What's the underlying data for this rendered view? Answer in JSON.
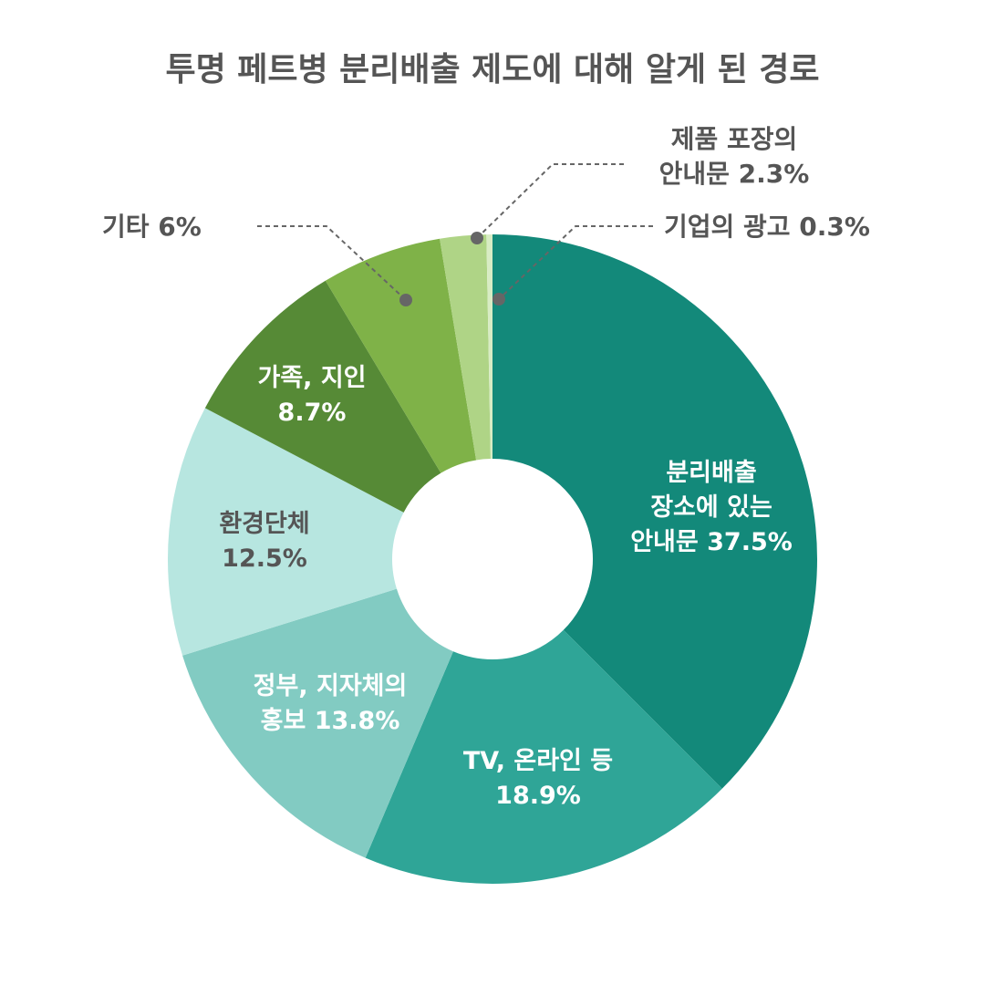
{
  "chart_data": {
    "type": "pie",
    "variant": "donut",
    "title": "투명 페트병 분리배출 제도에 대해 알게 된 경로",
    "slices": [
      {
        "key": "s1",
        "label": [
          "분리배출",
          "장소에 있는",
          "안내문 37.5%"
        ],
        "value": 37.5,
        "color": "#13897a",
        "text_color": "#ffffff",
        "label_position": "inside"
      },
      {
        "key": "s2",
        "label": [
          "TV, 온라인 등",
          "18.9%"
        ],
        "value": 18.9,
        "color": "#2fa597",
        "text_color": "#ffffff",
        "label_position": "inside"
      },
      {
        "key": "s3",
        "label": [
          "정부, 지자체의",
          "홍보 13.8%"
        ],
        "value": 13.8,
        "color": "#82cbc2",
        "text_color": "#ffffff",
        "label_position": "inside"
      },
      {
        "key": "s4",
        "label": [
          "환경단체",
          "12.5%"
        ],
        "value": 12.5,
        "color": "#b7e6e0",
        "text_color": "#555555",
        "label_position": "inside"
      },
      {
        "key": "s5",
        "label": [
          "가족, 지인",
          "8.7%"
        ],
        "value": 8.7,
        "color": "#568a36",
        "text_color": "#ffffff",
        "label_position": "inside"
      },
      {
        "key": "s6",
        "label": [
          "기타 6%"
        ],
        "value": 6,
        "color": "#7fb248",
        "text_color": "#555555",
        "label_position": "outside-left"
      },
      {
        "key": "s7",
        "label": [
          "제품 포장의",
          "안내문 2.3%"
        ],
        "value": 2.3,
        "color": "#afd486",
        "text_color": "#555555",
        "label_position": "outside-top"
      },
      {
        "key": "s8",
        "label": [
          "기업의 광고 0.3%"
        ],
        "value": 0.3,
        "color": "#d8ecc4",
        "text_color": "#555555",
        "label_position": "outside-right"
      }
    ],
    "unit": "%",
    "legend": "none"
  }
}
